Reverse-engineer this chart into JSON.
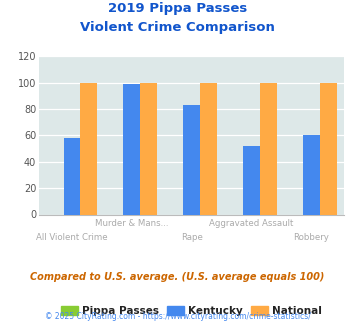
{
  "title_line1": "2019 Pippa Passes",
  "title_line2": "Violent Crime Comparison",
  "categories": [
    "All Violent Crime",
    "Murder & Mans...",
    "Rape",
    "Aggravated Assault",
    "Robbery"
  ],
  "pippa_passes": [
    0,
    0,
    0,
    0,
    0
  ],
  "kentucky": [
    58,
    99,
    83,
    52,
    60
  ],
  "national": [
    100,
    100,
    100,
    100,
    100
  ],
  "ylim": [
    0,
    120
  ],
  "yticks": [
    0,
    20,
    40,
    60,
    80,
    100,
    120
  ],
  "color_pippa": "#88cc33",
  "color_kentucky": "#4488ee",
  "color_national": "#ffaa44",
  "color_title": "#1155cc",
  "color_bg_plot": "#dde8e8",
  "color_bg_fig": "#ffffff",
  "color_axis_label": "#aaaaaa",
  "color_footnote": "#cc6600",
  "color_credit": "#4488ee",
  "color_credit_prefix": "#999999",
  "legend_labels": [
    "Pippa Passes",
    "Kentucky",
    "National"
  ],
  "footnote": "Compared to U.S. average. (U.S. average equals 100)",
  "credit": "© 2025 CityRating.com - https://www.cityrating.com/crime-statistics/",
  "bar_width": 0.28
}
